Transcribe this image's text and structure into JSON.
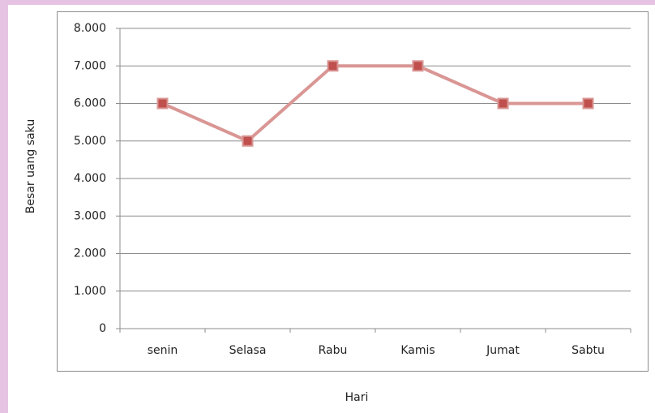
{
  "chart_data": {
    "type": "line",
    "xlabel": "Hari",
    "ylabel": "Besar uang saku",
    "categories": [
      "senin",
      "Selasa",
      "Rabu",
      "Kamis",
      "Jumat",
      "Sabtu"
    ],
    "values": [
      6000,
      5000,
      7000,
      7000,
      6000,
      6000
    ],
    "color": "#d99694",
    "marker_color": "#c0504d",
    "ylim": [
      0,
      8000
    ],
    "yticks": [
      0,
      {
        "value": 1000,
        "label": "1.000"
      },
      {
        "value": 2000,
        "label": "2.000"
      },
      {
        "value": 3000,
        "label": "3.000"
      },
      {
        "value": 4000,
        "label": "4.000"
      },
      {
        "value": 5000,
        "label": "5.000"
      },
      {
        "value": 6000,
        "label": "6.000"
      },
      {
        "value": 7000,
        "label": "7.000"
      },
      {
        "value": 8000,
        "label": "8.000"
      }
    ],
    "grid": true
  }
}
